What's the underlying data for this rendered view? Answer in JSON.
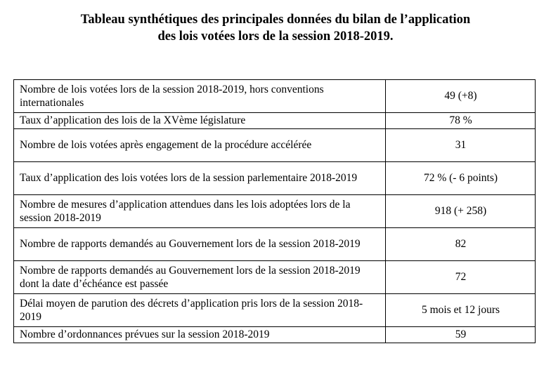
{
  "title": {
    "line1": "Tableau synthétiques des principales données du bilan de l’application",
    "line2": "des lois votées lors de la session 2018-2019."
  },
  "rows": [
    {
      "label": "Nombre de lois votées lors de la session 2018-2019, hors conventions internationales",
      "value": "49 (+8)"
    },
    {
      "label": "Taux d’application des lois de la XVème législature",
      "value": "78 %"
    },
    {
      "label": "Nombre de lois votées après engagement de la procédure accélérée",
      "value": "31"
    },
    {
      "label": "Taux d’application des lois votées lors de la session parlementaire 2018-2019",
      "value": "72 % (- 6 points)"
    },
    {
      "label": "Nombre de mesures d’application attendues dans les lois adoptées lors de la session 2018-2019",
      "value": "918 (+ 258)"
    },
    {
      "label": "Nombre de rapports demandés au Gouvernement lors de la session 2018-2019",
      "value": "82"
    },
    {
      "label": "Nombre de rapports demandés au Gouvernement lors de la session 2018-2019 dont la date d’échéance est passée",
      "value": "72"
    },
    {
      "label": "Délai moyen de parution des décrets d’application pris lors de la session 2018-2019",
      "value": "5 mois et 12 jours"
    },
    {
      "label": "Nombre d’ordonnances prévues sur la session 2018-2019",
      "value": "59"
    }
  ]
}
